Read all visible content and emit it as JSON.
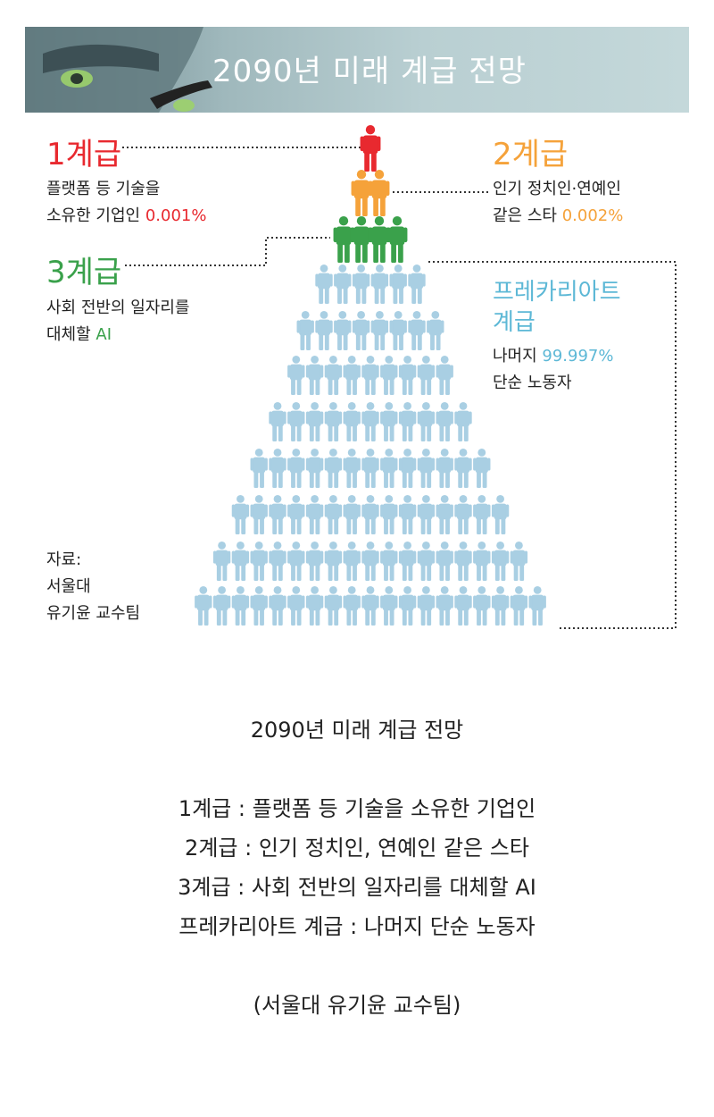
{
  "infographic": {
    "title": "2090년 미래 계급 전망",
    "class1": {
      "heading": "1계급",
      "line1": "플랫폼 등 기술을",
      "line2_prefix": "소유한 기업인 ",
      "share": "0.001%"
    },
    "class2": {
      "heading": "2계급",
      "line1": "인기 정치인·연예인",
      "line2_prefix": "같은 스타 ",
      "share": "0.002%"
    },
    "class3": {
      "heading": "3계급",
      "line1": "사회 전반의 일자리를",
      "line2_prefix": "대체할 ",
      "suffix": "AI"
    },
    "precariat": {
      "heading_line1": "프레카리아트",
      "heading_line2": "계급",
      "line1_prefix": "나머지 ",
      "share": "99.997%",
      "line2": "단순 노동자"
    },
    "source": {
      "line1": "자료:",
      "line2": "서울대",
      "line3": "유기윤 교수팀"
    },
    "pyramid_rows": [
      1,
      2,
      4,
      6,
      8,
      9,
      11,
      13,
      15,
      17,
      19
    ],
    "colors": {
      "class1": "#e8292f",
      "class2": "#f5a23a",
      "class3": "#3aa14b",
      "precariat": "#5db8d6",
      "figure_light": "#a9cfe3"
    }
  },
  "caption": {
    "title": "2090년 미래 계급 전망",
    "lines": [
      "1계급 : 플랫폼 등 기술을 소유한 기업인",
      "2계급 : 인기 정치인, 연예인 같은 스타",
      "3계급 : 사회 전반의 일자리를 대체할 AI",
      "프레카리아트 계급 : 나머지 단순 노동자"
    ],
    "source": "(서울대 유기윤 교수팀)"
  }
}
